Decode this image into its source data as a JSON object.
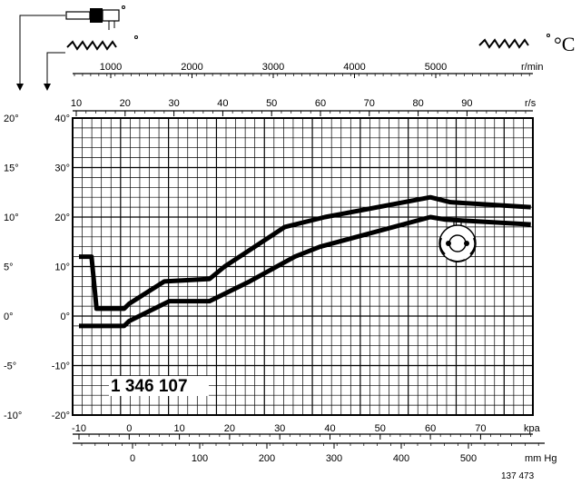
{
  "chart_data": {
    "type": "line",
    "part_number": "1 346 107",
    "figure_number": "137 473",
    "unit_rpm": "r/min",
    "unit_rps": "r/s",
    "unit_kpa": "kpa",
    "unit_mmhg": "mm Hg",
    "unit_celsius": "°C",
    "rpm_ticks": [
      "1000",
      "2000",
      "3000",
      "4000",
      "5000"
    ],
    "rps_ticks": [
      "10",
      "20",
      "30",
      "40",
      "50",
      "60",
      "70",
      "80",
      "90"
    ],
    "kpa_ticks": [
      "-10",
      "0",
      "10",
      "20",
      "30",
      "40",
      "50",
      "60",
      "70"
    ],
    "mmhg_ticks": [
      "0",
      "100",
      "200",
      "300",
      "400",
      "500"
    ],
    "left_ticks": [
      "20°",
      "15°",
      "10°",
      "5°",
      "0°",
      "-5°",
      "-10°"
    ],
    "inner_ticks": [
      "40°",
      "30°",
      "20°",
      "10°",
      "0°",
      "-10°",
      "-20°"
    ],
    "xlim_kpa": [
      -10,
      80
    ],
    "ylim_inner_deg": [
      -20,
      40
    ],
    "grid": true,
    "series": [
      {
        "x_kpa": [
          -10,
          -7.5,
          -6.5,
          -1,
          0,
          7,
          16,
          19,
          31,
          39,
          60,
          64,
          80
        ],
        "y_inner_deg": [
          12,
          12,
          1.5,
          1.5,
          2.5,
          7,
          7.5,
          10,
          18,
          20,
          24,
          23,
          22
        ]
      },
      {
        "x_kpa": [
          -10,
          -1,
          0,
          8,
          16,
          24,
          33,
          38,
          60,
          63,
          80
        ],
        "y_inner_deg": [
          -2,
          -2,
          -1,
          3,
          3,
          7,
          12,
          14,
          20,
          19.5,
          18.5
        ]
      }
    ]
  },
  "icons": {
    "distributor_a": "distributor-icon",
    "distributor_b": "crankshaft-icon",
    "distributor_c": "crankshaft-icon",
    "centrifugal": "centrifugal-advance-icon"
  }
}
